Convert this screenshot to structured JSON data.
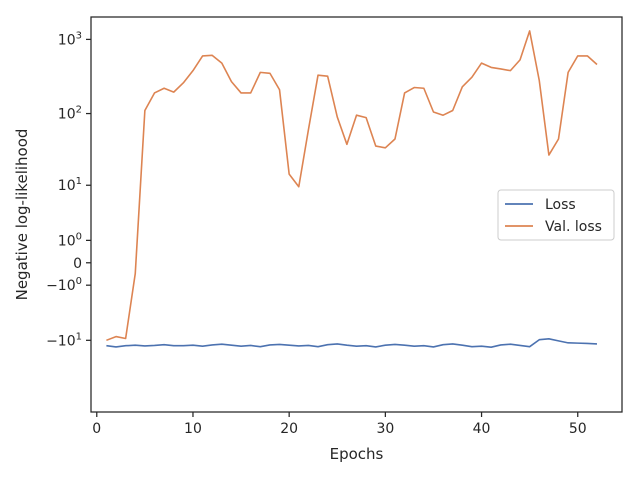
{
  "chart_data": {
    "type": "line",
    "xlabel": "Epochs",
    "ylabel": "Negative log-likelihood",
    "yscale": "symlog",
    "xlim": [
      -0.6,
      54.6
    ],
    "ylim": [
      -100,
      2000
    ],
    "xticks": [
      0,
      10,
      20,
      30,
      40,
      50
    ],
    "yticks": [
      {
        "value": 1000,
        "label": "10",
        "sup": "3"
      },
      {
        "value": 100,
        "label": "10",
        "sup": "2"
      },
      {
        "value": 10,
        "label": "10",
        "sup": "1"
      },
      {
        "value": 1,
        "label": "10",
        "sup": "0"
      },
      {
        "value": 0,
        "label": "0",
        "sup": ""
      },
      {
        "value": -1,
        "label": "−10",
        "sup": "0"
      },
      {
        "value": -10,
        "label": "−10",
        "sup": "1"
      }
    ],
    "grid": false,
    "legend_position": "center-right",
    "x": [
      1,
      2,
      3,
      4,
      5,
      6,
      7,
      8,
      9,
      10,
      11,
      12,
      13,
      14,
      15,
      16,
      17,
      18,
      19,
      20,
      21,
      22,
      23,
      24,
      25,
      26,
      27,
      28,
      29,
      30,
      31,
      32,
      33,
      34,
      35,
      36,
      37,
      38,
      39,
      40,
      41,
      42,
      43,
      44,
      45,
      46,
      47,
      48,
      49,
      50,
      51,
      52
    ],
    "series": [
      {
        "name": "Loss",
        "color": "#4c72b0",
        "values": [
          -12.0,
          -12.5,
          -12.0,
          -11.8,
          -12.1,
          -11.9,
          -11.6,
          -12.0,
          -12.0,
          -11.8,
          -12.2,
          -11.7,
          -11.4,
          -11.8,
          -12.2,
          -11.9,
          -12.4,
          -11.7,
          -11.5,
          -11.8,
          -12.1,
          -11.9,
          -12.4,
          -11.6,
          -11.3,
          -11.8,
          -12.2,
          -12.0,
          -12.5,
          -11.8,
          -11.5,
          -11.8,
          -12.2,
          -12.0,
          -12.5,
          -11.6,
          -11.3,
          -11.8,
          -12.4,
          -12.2,
          -12.6,
          -11.7,
          -11.4,
          -11.9,
          -12.4,
          -9.8,
          -9.5,
          -10.2,
          -10.9,
          -11.0,
          -11.1,
          -11.3
        ]
      },
      {
        "name": "Val. loss",
        "color": "#dd8452",
        "values": [
          -10.0,
          -8.8,
          -9.4,
          -0.4,
          110,
          190,
          220,
          195,
          260,
          380,
          600,
          610,
          480,
          270,
          190,
          190,
          360,
          350,
          210,
          14.5,
          9.5,
          60,
          330,
          320,
          90,
          38,
          95,
          88,
          36,
          34,
          45,
          190,
          225,
          220,
          105,
          95,
          110,
          230,
          310,
          480,
          420,
          400,
          380,
          530,
          1300,
          280,
          27,
          45,
          360,
          600,
          600,
          460
        ]
      }
    ]
  }
}
